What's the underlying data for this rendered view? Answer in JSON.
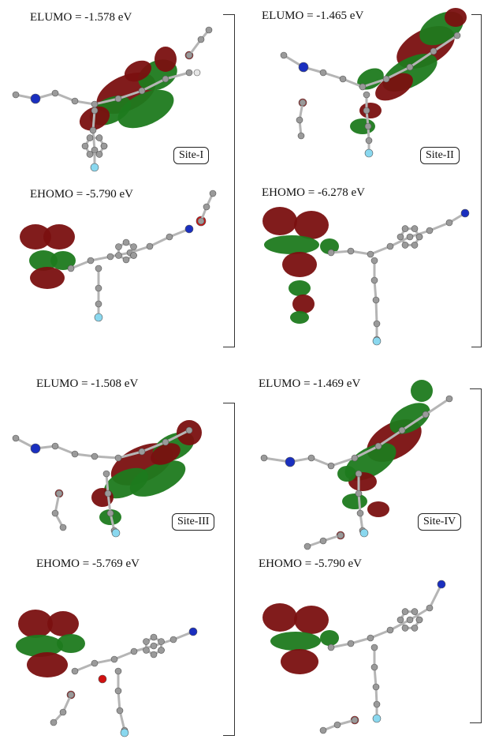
{
  "panels": [
    {
      "lumo": {
        "prefix": "E",
        "sub": "LUMO",
        "value": " = -1.578 eV"
      },
      "homo": {
        "prefix": "E",
        "sub": "HOMO",
        "value": " = -5.790 eV"
      },
      "site": "Site-I"
    },
    {
      "lumo": {
        "prefix": "E",
        "sub": "LUMO",
        "value": " = -1.465 eV"
      },
      "homo": {
        "prefix": "E",
        "sub": "HOMO",
        "value": " = -6.278 eV"
      },
      "site": "Site-II"
    },
    {
      "lumo": {
        "prefix": "E",
        "sub": "LUMO",
        "value": " = -1.508 eV"
      },
      "homo": {
        "prefix": "E",
        "sub": "HOMO",
        "value": " = -5.769 eV"
      },
      "site": "Site-III"
    },
    {
      "lumo": {
        "prefix": "E",
        "sub": "LUMO",
        "value": " = -1.469 eV"
      },
      "homo": {
        "prefix": "E",
        "sub": "HOMO",
        "value": " = -5.790 eV"
      },
      "site": "Site-IV"
    }
  ],
  "colors": {
    "lobe_positive": "#7a1010",
    "lobe_negative": "#1d7a1d",
    "carbon": "#9a9a9a",
    "hydrogen": "#e6e6e6",
    "nitrogen": "#1a2fbf",
    "oxygen": "#d01010",
    "fluorine": "#8ad8ef",
    "bond": "#b5b5b5"
  }
}
